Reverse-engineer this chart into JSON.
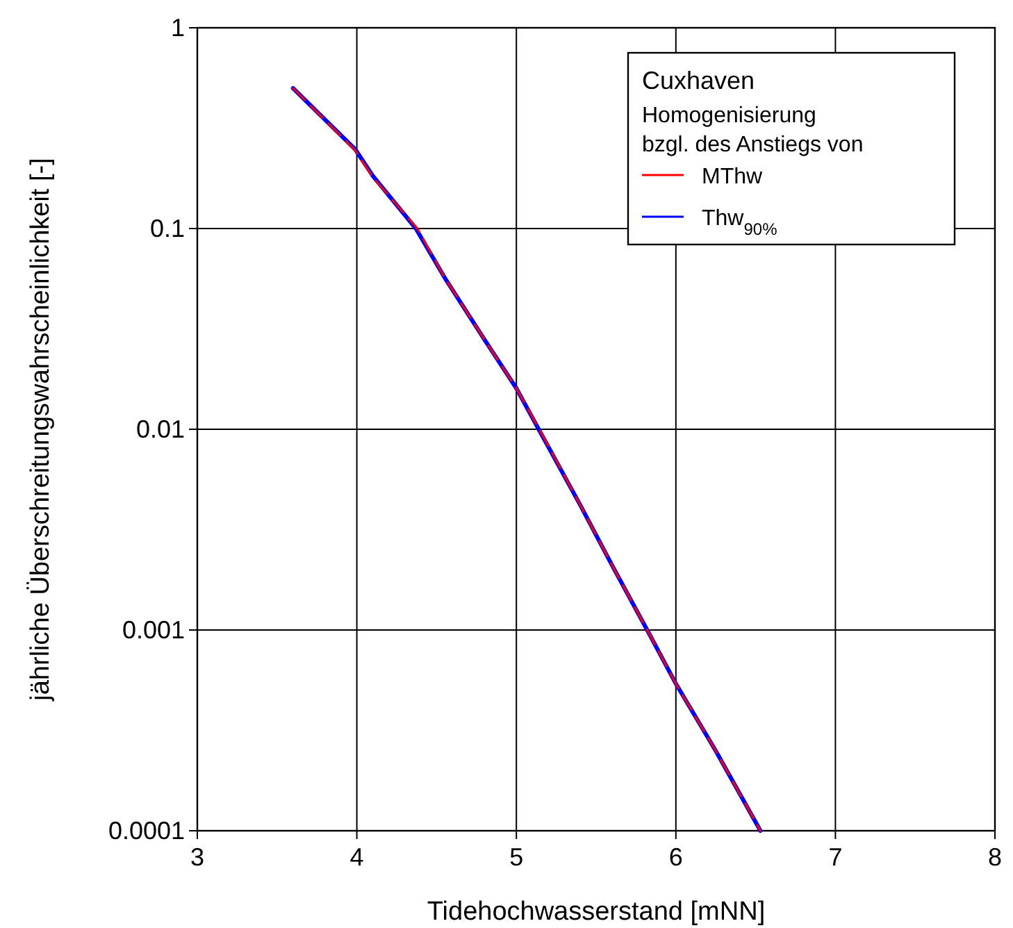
{
  "chart_data": {
    "type": "line",
    "xlabel": "Tidehochwasserstand [mNN]",
    "ylabel": "jährliche Überschreitungswahrscheinlichkeit [-]",
    "legend_title": "Cuxhaven",
    "annotations": [
      "Homogenisierung bzgl. des Anstiegs von"
    ],
    "xlim": [
      3,
      8
    ],
    "xticks": [
      3,
      4,
      5,
      6,
      7,
      8
    ],
    "ylim": [
      0.0001,
      1
    ],
    "yticks": [
      0.0001,
      0.001,
      0.01,
      0.1,
      1
    ],
    "log": "y",
    "grid": true,
    "legend": "top right",
    "series": [
      {
        "name": "MThw",
        "color": "#ff0000",
        "line_style": "dashed",
        "x": [
          3.6,
          3.99,
          4.1,
          4.38,
          4.55,
          4.8,
          5.0,
          5.15,
          5.4,
          5.6,
          5.82,
          6.0,
          6.25,
          6.53
        ],
        "values": [
          0.5,
          0.245,
          0.18,
          0.1,
          0.057,
          0.028,
          0.016,
          0.0098,
          0.0042,
          0.0021,
          0.001,
          0.00054,
          0.00025,
          0.0001
        ]
      },
      {
        "name": "Thw$_{90%}$",
        "color": "#0000ff",
        "line_style": "solid",
        "x": [
          3.6,
          3.99,
          4.1,
          4.37,
          4.55,
          4.8,
          5.0,
          5.14,
          5.4,
          5.6,
          5.82,
          6.0,
          6.25,
          6.53
        ],
        "values": [
          0.5,
          0.248,
          0.183,
          0.1,
          0.057,
          0.028,
          0.016,
          0.01,
          0.0042,
          0.0021,
          0.001,
          0.00054,
          0.00025,
          0.0001
        ]
      }
    ]
  }
}
